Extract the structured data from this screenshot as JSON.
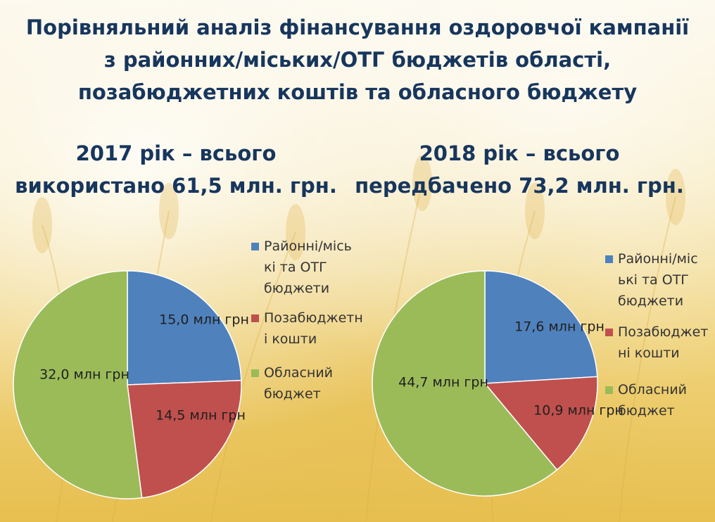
{
  "header": {
    "title_line1": "Порівняльний аналіз фінансування оздоровчої кампанії",
    "title_line2": "з районних/міських/ОТГ бюджетів області,",
    "title_line3": "позабюджетних коштів та обласного бюджету"
  },
  "colors": {
    "title": "#17365d",
    "district": "#4f81bd",
    "extra": "#c0504d",
    "regional": "#9bbb59"
  },
  "chart_data": [
    {
      "type": "pie",
      "title_line1": "2017 рік – всього",
      "title_line2": "використано 61,5 млн. грн.",
      "categories": [
        "Районні/місь ькі та ОТГ бюджети",
        "Позабюджетн і кошти",
        "Обласний бюджет"
      ],
      "legend": [
        {
          "lines": [
            "Районні/місь",
            "кі та ОТГ",
            "бюджети"
          ]
        },
        {
          "lines": [
            "Позабюджетн",
            "і кошти"
          ]
        },
        {
          "lines": [
            "Обласний",
            "бюджет"
          ]
        }
      ],
      "values": [
        15.0,
        14.5,
        32.0
      ],
      "data_labels": [
        "15,0 млн грн",
        "14,5 млн грн",
        "32,0 млн грн"
      ],
      "legend_position": "right"
    },
    {
      "type": "pie",
      "title_line1": "2018 рік – всього",
      "title_line2": "передбачено 73,2 млн. грн.",
      "categories": [
        "Районні/місь ькі та ОТГ бюджети",
        "Позабюджетн і кошти",
        "Обласний бюджет"
      ],
      "legend": [
        {
          "lines": [
            "Районні/міс",
            "ькі та ОТГ",
            "бюджети"
          ]
        },
        {
          "lines": [
            "Позабюджет",
            "ні кошти"
          ]
        },
        {
          "lines": [
            "Обласний",
            "бюджет"
          ]
        }
      ],
      "values": [
        17.6,
        10.9,
        44.7
      ],
      "data_labels": [
        "17,6 млн грн",
        "10,9 млн грн",
        "44,7 млн грн"
      ],
      "legend_position": "right"
    }
  ]
}
